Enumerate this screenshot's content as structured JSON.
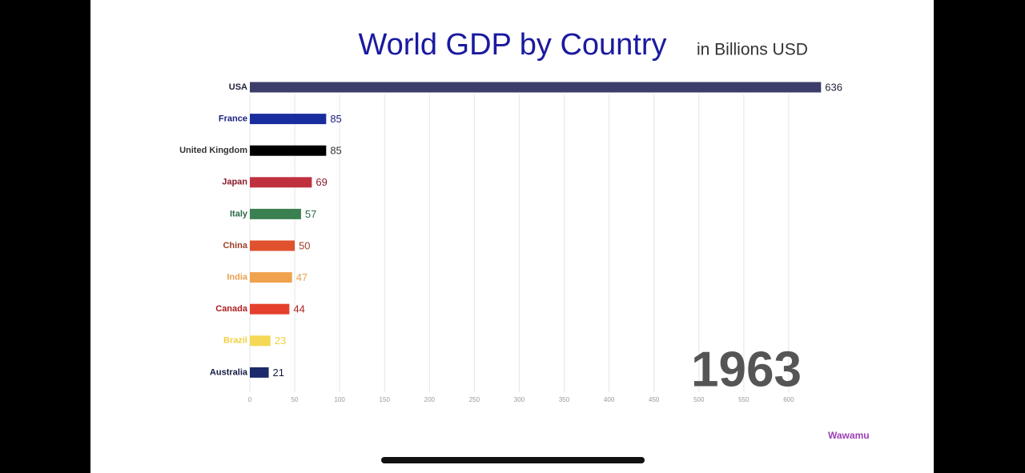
{
  "chart_data": {
    "type": "bar",
    "orientation": "horizontal",
    "title": "World GDP by Country",
    "subtitle": "in Billions USD",
    "categories": [
      "USA",
      "France",
      "United Kingdom",
      "Japan",
      "Italy",
      "China",
      "India",
      "Canada",
      "Brazil",
      "Australia"
    ],
    "values": [
      636,
      85,
      85,
      69,
      57,
      50,
      47,
      44,
      23,
      21
    ],
    "colors": [
      "#3d3d6b",
      "#1a2d9e",
      "#000000",
      "#c0313f",
      "#3a8050",
      "#e0512e",
      "#f0a24e",
      "#e5402e",
      "#f5d855",
      "#1a2a6a"
    ],
    "label_colors": [
      "#22223a",
      "#1a237e",
      "#333333",
      "#8b1a2a",
      "#2a6a48",
      "#a0402a",
      "#e8a050",
      "#b02020",
      "#f0d040",
      "#111a40"
    ],
    "xlim": [
      0,
      650
    ],
    "xticks": [
      0,
      50,
      100,
      150,
      200,
      250,
      300,
      350,
      400,
      450,
      500,
      550,
      600
    ],
    "grid": true,
    "annotation": "1963",
    "watermark": "Wawamu"
  }
}
